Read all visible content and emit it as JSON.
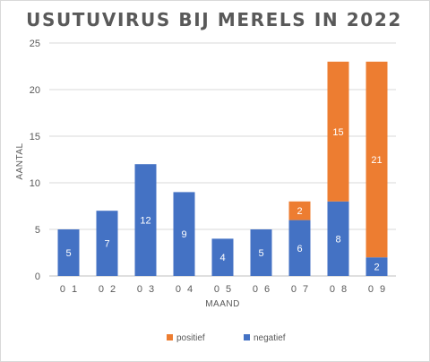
{
  "chart_data": {
    "type": "bar",
    "stacked": true,
    "title": "USUTUVIRUS BIJ MERELS IN 2022",
    "xlabel": "MAAND",
    "ylabel": "AANTAL",
    "categories": [
      "0 1",
      "0 2",
      "0 3",
      "0 4",
      "0 5",
      "0 6",
      "0 7",
      "0 8",
      "0 9"
    ],
    "ylim": [
      0,
      25
    ],
    "yticks": [
      0,
      5,
      10,
      15,
      20,
      25
    ],
    "grid": true,
    "legend_position": "bottom",
    "series": [
      {
        "name": "negatief",
        "color": "#4472c4",
        "values": [
          5,
          7,
          12,
          9,
          4,
          5,
          6,
          8,
          2
        ]
      },
      {
        "name": "positief",
        "color": "#ed7d31",
        "values": [
          0,
          0,
          0,
          0,
          0,
          0,
          2,
          15,
          21
        ]
      }
    ],
    "legend_order": [
      "positief",
      "negatief"
    ]
  }
}
